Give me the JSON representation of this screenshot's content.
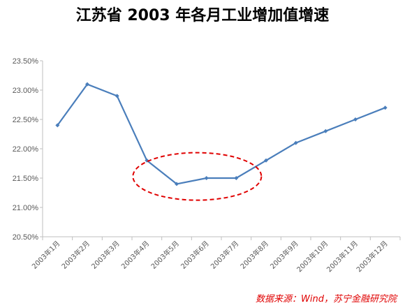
{
  "chart_data": {
    "type": "line",
    "title": "江苏省 2003 年各月工业增加值增速",
    "xlabel": "",
    "ylabel": "",
    "categories": [
      "2003年1月",
      "2003年2月",
      "2003年3月",
      "2003年4月",
      "2003年5月",
      "2003年6月",
      "2003年7月",
      "2003年8月",
      "2003年9月",
      "2003年10月",
      "2003年11月",
      "2003年12月"
    ],
    "series": [
      {
        "values": [
          22.4,
          23.1,
          22.9,
          21.8,
          21.4,
          21.5,
          21.5,
          21.8,
          22.1,
          22.3,
          22.5,
          22.7
        ]
      }
    ],
    "ylim": [
      20.5,
      23.5
    ],
    "yticks": [
      "20.50%",
      "21.00%",
      "21.50%",
      "22.00%",
      "22.50%",
      "23.00%",
      "23.50%"
    ],
    "grid": false,
    "legend": "none",
    "annotation": "dashed red ellipse around 2003年4月–2003年7月 dip",
    "source": "数据来源：Wind，苏宁金融研究院",
    "colors": {
      "line": "#4a7ebb",
      "annotation": "#e00000",
      "axis": "#bfbfbf",
      "text": "#595959"
    }
  }
}
